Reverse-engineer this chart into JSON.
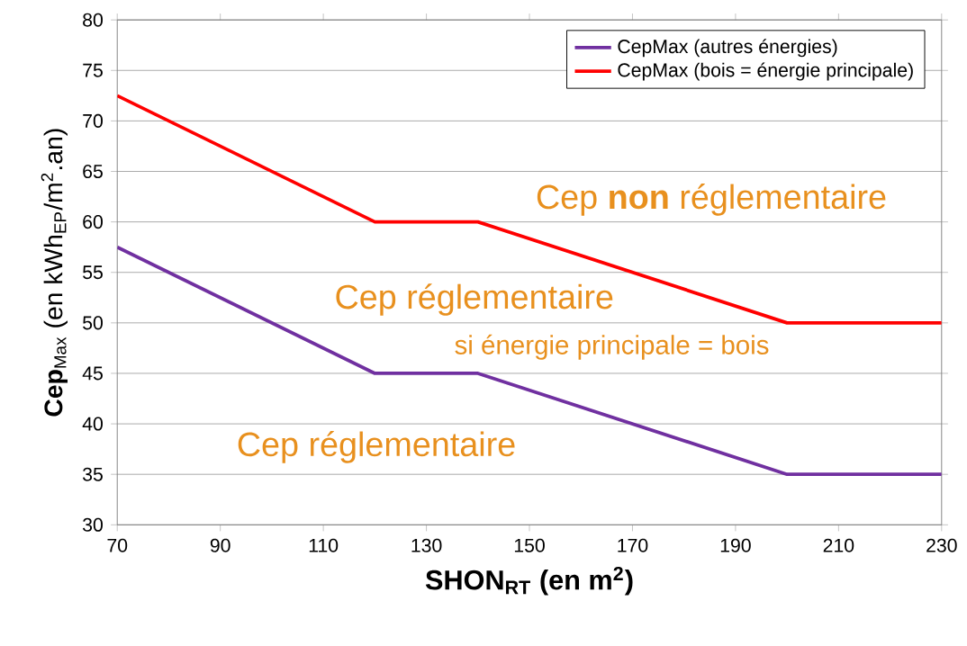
{
  "chart_data": {
    "type": "line",
    "xlabel": "SHON$_{RT}$ (en m$^{2}$)",
    "ylabel": "**Cep**$_{Max}$ (en kWh$_{EP}$/m$^{2}$.an)",
    "x": [
      70,
      120,
      140,
      200,
      230
    ],
    "series": [
      {
        "name": "CepMax (autres énergies)",
        "color": "#7030a0",
        "values": [
          57.5,
          45,
          45,
          35,
          35
        ]
      },
      {
        "name": "CepMax (bois = énergie principale)",
        "color": "#ff0000",
        "values": [
          72.5,
          60,
          60,
          50,
          50
        ]
      }
    ],
    "xlim": [
      70,
      230
    ],
    "ylim": [
      30,
      80
    ],
    "xticks": [
      70,
      90,
      110,
      130,
      150,
      170,
      190,
      210,
      230
    ],
    "yticks": [
      30,
      35,
      40,
      45,
      50,
      55,
      60,
      65,
      70,
      75,
      80
    ],
    "grid": "y",
    "legend": "top right",
    "marker": "none",
    "line_style": "solid",
    "annotations": [
      "Cep **non** réglementaire",
      "Cep réglementaire",
      "si énergie principale = bois",
      "Cep réglementaire"
    ]
  }
}
